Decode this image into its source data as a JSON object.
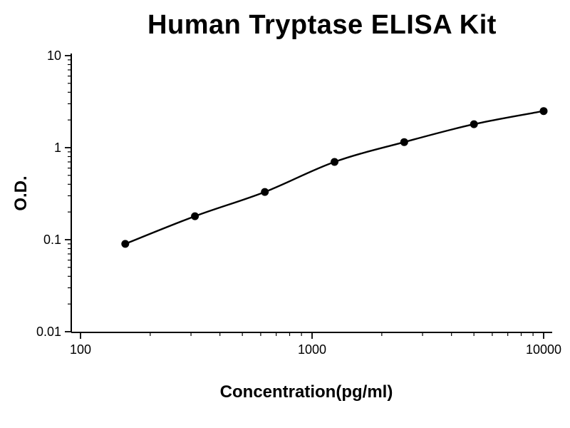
{
  "chart_data": {
    "type": "line",
    "title": "Human Tryptase ELISA Kit",
    "xlabel": "Concentration(pg/ml)",
    "ylabel": "O.D.",
    "x_scale": "log",
    "y_scale": "log",
    "xlim": [
      100,
      10000
    ],
    "ylim": [
      0.01,
      10
    ],
    "x_ticks": [
      100,
      1000,
      10000
    ],
    "y_ticks": [
      10,
      1,
      0.1,
      0.01
    ],
    "x": [
      156,
      312,
      625,
      1250,
      2500,
      5000,
      10000
    ],
    "y": [
      0.09,
      0.18,
      0.33,
      0.7,
      1.15,
      1.8,
      2.5
    ],
    "grid": false,
    "legend": "none",
    "marker": "filled-circle",
    "line_color": "#000000",
    "point_color": "#000000",
    "axis_color": "#000000",
    "background": "#ffffff"
  }
}
